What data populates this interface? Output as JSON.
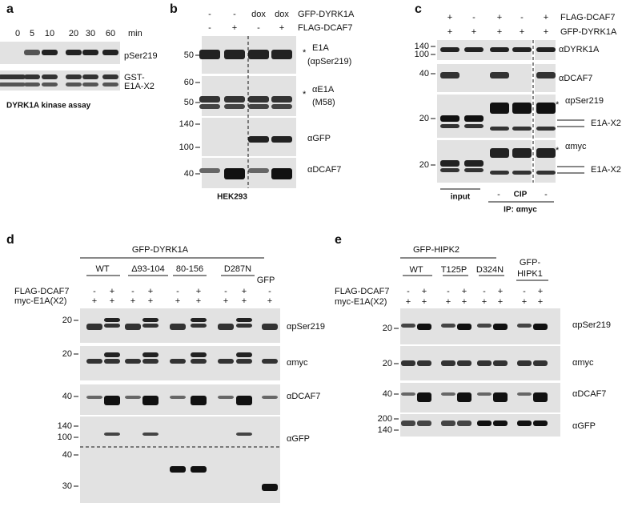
{
  "panel_a": {
    "label": "a",
    "times": [
      "0",
      "5",
      "10",
      "20",
      "30",
      "60"
    ],
    "time_unit": "min",
    "blot_labels": [
      "pSer219",
      "GST-",
      "E1A-X2"
    ],
    "caption": "DYRK1A  kinase assay"
  },
  "panel_b": {
    "label": "b",
    "rows": [
      {
        "name": "GFP-DYRK1A",
        "signs": [
          "-",
          "-",
          "dox",
          "dox"
        ]
      },
      {
        "name": "FLAG-DCAF7",
        "signs": [
          "-",
          "+",
          "-",
          "+"
        ]
      }
    ],
    "markers": [
      50,
      60,
      50,
      140,
      100,
      40
    ],
    "blot_labels": [
      "E1A",
      "(αpSer219)",
      "αE1A",
      "(M58)",
      "αGFP",
      "αDCAF7"
    ],
    "asterisks": [
      "*",
      "*"
    ],
    "cell_line": "HEK293"
  },
  "panel_c": {
    "label": "c",
    "rows": [
      {
        "name": "FLAG-DCAF7",
        "signs": [
          "+",
          "-",
          "+",
          "-",
          "+"
        ]
      },
      {
        "name": "GFP-DYRK1A",
        "signs": [
          "+",
          "+",
          "+",
          "+",
          "+"
        ]
      }
    ],
    "markers": [
      140,
      100,
      40,
      20,
      20
    ],
    "blot_labels": [
      "αDYRK1A",
      "αDCAF7",
      "αpSer219",
      "E1A-X2",
      "αmyc",
      "E1A-X2"
    ],
    "asterisks": [
      "*",
      "*"
    ],
    "bottom": [
      "input",
      "-",
      "CIP",
      "-",
      "IP: αmyc"
    ]
  },
  "panel_d": {
    "label": "d",
    "construct": "GFP-DYRK1A",
    "groups": [
      "WT",
      "Δ93-104",
      "80-156",
      "D287N",
      "GFP"
    ],
    "rows": [
      {
        "name": "FLAG-DCAF7",
        "signs": [
          "-",
          "+",
          "-",
          "+",
          "-",
          "+",
          "-",
          "+",
          "-"
        ]
      },
      {
        "name": "myc-E1A(X2)",
        "signs": [
          "+",
          "+",
          "+",
          "+",
          "+",
          "+",
          "+",
          "+",
          "+"
        ]
      }
    ],
    "markers": [
      20,
      20,
      40,
      140,
      100,
      40,
      30
    ],
    "blot_labels": [
      "αpSer219",
      "αmyc",
      "αDCAF7",
      "αGFP"
    ]
  },
  "panel_e": {
    "label": "e",
    "construct": "GFP-HIPK2",
    "groups": [
      "WT",
      "T125P",
      "D324N",
      "GFP-",
      "HIPK1"
    ],
    "rows": [
      {
        "name": "FLAG-DCAF7",
        "signs": [
          "-",
          "+",
          "-",
          "+",
          "-",
          "+",
          "-",
          "+"
        ]
      },
      {
        "name": "myc-E1A(X2)",
        "signs": [
          "+",
          "+",
          "+",
          "+",
          "+",
          "+",
          "+",
          "+"
        ]
      }
    ],
    "markers": [
      20,
      20,
      40,
      200,
      140
    ],
    "blot_labels": [
      "αpSer219",
      "αmyc",
      "αDCAF7",
      "αGFP"
    ]
  }
}
